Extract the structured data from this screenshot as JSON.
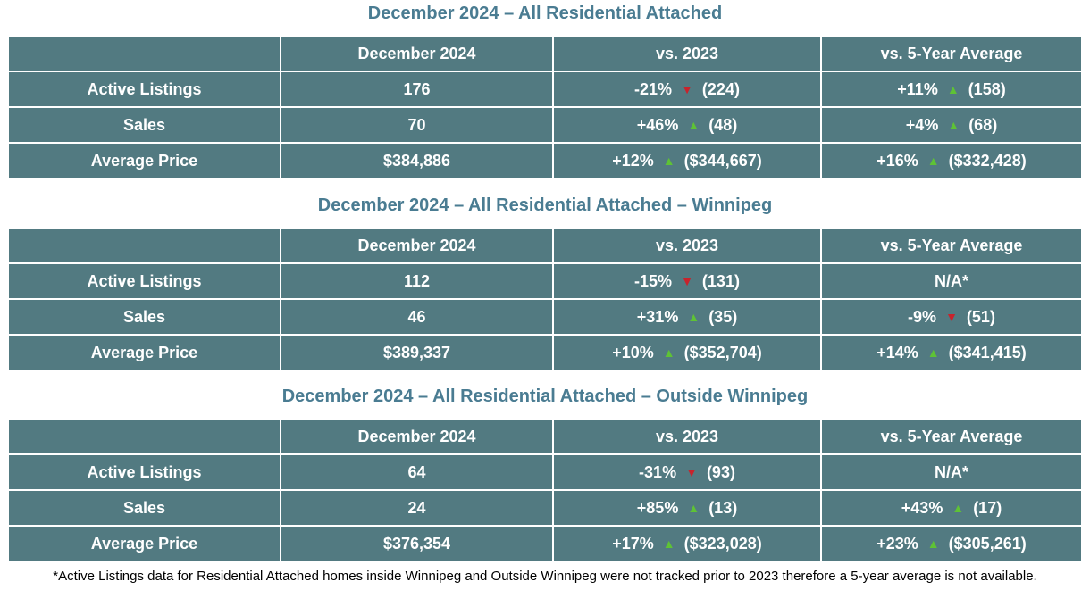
{
  "colors": {
    "table_background": "#527a81",
    "title_text": "#4a7c92",
    "up_arrow_green": "#5ec235",
    "down_arrow_red": "#c8232c",
    "cell_text": "#ffffff",
    "footnote_text": "#000000"
  },
  "tables": [
    {
      "title": "December 2024 – All Residential Attached",
      "headers": [
        "",
        "December 2024",
        "vs. 2023",
        "vs. 5-Year Average"
      ],
      "rows": [
        {
          "label": "Active Listings",
          "current": "176",
          "vs2023": {
            "pct": "-21%",
            "dir": "down",
            "ref": "(224)"
          },
          "vs5yr": {
            "pct": "+11%",
            "dir": "up",
            "ref": "(158)"
          }
        },
        {
          "label": "Sales",
          "current": "70",
          "vs2023": {
            "pct": "+46%",
            "dir": "up",
            "ref": "(48)"
          },
          "vs5yr": {
            "pct": "+4%",
            "dir": "up",
            "ref": "(68)"
          }
        },
        {
          "label": "Average Price",
          "current": "$384,886",
          "vs2023": {
            "pct": "+12%",
            "dir": "up",
            "ref": "($344,667)"
          },
          "vs5yr": {
            "pct": "+16%",
            "dir": "up",
            "ref": "($332,428)"
          }
        }
      ]
    },
    {
      "title": "December 2024 – All Residential Attached – Winnipeg",
      "headers": [
        "",
        "December 2024",
        "vs. 2023",
        "vs. 5-Year Average"
      ],
      "rows": [
        {
          "label": "Active Listings",
          "current": "112",
          "vs2023": {
            "pct": "-15%",
            "dir": "down",
            "ref": "(131)"
          },
          "vs5yr": {
            "pct": "N/A*",
            "dir": "none",
            "ref": ""
          }
        },
        {
          "label": "Sales",
          "current": "46",
          "vs2023": {
            "pct": "+31%",
            "dir": "up",
            "ref": "(35)"
          },
          "vs5yr": {
            "pct": "-9%",
            "dir": "down",
            "ref": "(51)"
          }
        },
        {
          "label": "Average Price",
          "current": "$389,337",
          "vs2023": {
            "pct": "+10%",
            "dir": "up",
            "ref": "($352,704)"
          },
          "vs5yr": {
            "pct": "+14%",
            "dir": "up",
            "ref": "($341,415)"
          }
        }
      ]
    },
    {
      "title": "December 2024 – All Residential Attached – Outside Winnipeg",
      "headers": [
        "",
        "December 2024",
        "vs. 2023",
        "vs. 5-Year Average"
      ],
      "rows": [
        {
          "label": "Active Listings",
          "current": "64",
          "vs2023": {
            "pct": "-31%",
            "dir": "down",
            "ref": "(93)"
          },
          "vs5yr": {
            "pct": "N/A*",
            "dir": "none",
            "ref": ""
          }
        },
        {
          "label": "Sales",
          "current": "24",
          "vs2023": {
            "pct": "+85%",
            "dir": "up",
            "ref": "(13)"
          },
          "vs5yr": {
            "pct": "+43%",
            "dir": "up",
            "ref": "(17)"
          }
        },
        {
          "label": "Average Price",
          "current": "$376,354",
          "vs2023": {
            "pct": "+17%",
            "dir": "up",
            "ref": "($323,028)"
          },
          "vs5yr": {
            "pct": "+23%",
            "dir": "up",
            "ref": "($305,261)"
          }
        }
      ]
    }
  ],
  "footnote": "*Active Listings data for Residential Attached homes inside Winnipeg and Outside Winnipeg were not tracked prior to 2023 therefore a 5-year average is not available."
}
